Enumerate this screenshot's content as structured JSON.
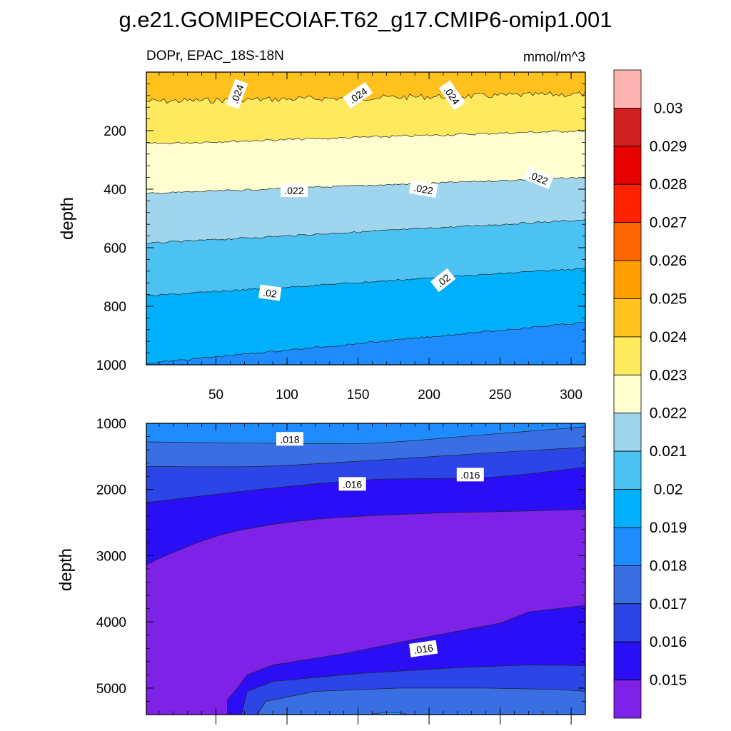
{
  "chart_data": {
    "type": "filled-contour",
    "title": "g.e21.GOMIPECOIAF.T62_g17.CMIP6-omip1.001",
    "left_subtitle": "DOPr, EPAC_18S-18N",
    "units": "mmol/m^3",
    "colorbar": {
      "levels": [
        "0.015",
        "0.016",
        "0.017",
        "0.018",
        "0.019",
        "0.02",
        "0.021",
        "0.022",
        "0.023",
        "0.024",
        "0.025",
        "0.026",
        "0.027",
        "0.028",
        "0.029",
        "0.03"
      ],
      "colors": [
        "#7e22e8",
        "#2a0ef5",
        "#2c45e6",
        "#3a6fe4",
        "#1e8cff",
        "#00b0fb",
        "#4cc2f3",
        "#9fd6ee",
        "#fffed0",
        "#ffe95f",
        "#fec11d",
        "#fe9e00",
        "#ff6600",
        "#ff2200",
        "#e70000",
        "#d02020",
        "#ffb4b4"
      ]
    },
    "panels": [
      {
        "name": "upper",
        "ylabel": "depth",
        "xlim": [
          1,
          310
        ],
        "ylim": [
          1000,
          0
        ],
        "xticks": [
          "50",
          "100",
          "150",
          "200",
          "250",
          "300"
        ],
        "xtick_values": [
          50,
          100,
          150,
          200,
          250,
          300
        ],
        "yticks": [
          "200",
          "400",
          "600",
          "800",
          "1000"
        ],
        "ytick_values": [
          200,
          400,
          600,
          800,
          1000
        ],
        "contour_labels": [
          {
            "text": ".024",
            "x": 65,
            "y": 75,
            "angle": -70
          },
          {
            "text": ".024",
            "x": 150,
            "y": 80,
            "angle": -35
          },
          {
            "text": ".024",
            "x": 216,
            "y": 80,
            "angle": 55
          },
          {
            "text": ".022",
            "x": 105,
            "y": 405,
            "angle": 0
          },
          {
            "text": ".022",
            "x": 196,
            "y": 400,
            "angle": 10
          },
          {
            "text": ".022",
            "x": 277,
            "y": 362,
            "angle": 22
          },
          {
            "text": ".02",
            "x": 88,
            "y": 755,
            "angle": 8
          },
          {
            "text": ".02",
            "x": 210,
            "y": 712,
            "angle": -38
          }
        ],
        "boundaries": [
          {
            "level": "0.024",
            "x": [
              1,
              310
            ],
            "y": [
              100,
              75
            ],
            "noise": 10
          },
          {
            "level": "0.023",
            "x": [
              1,
              310
            ],
            "y": [
              245,
              200
            ],
            "noise": 4
          },
          {
            "level": "0.022",
            "x": [
              1,
              310
            ],
            "y": [
              415,
              360
            ],
            "noise": 3
          },
          {
            "level": "0.021",
            "x": [
              1,
              310
            ],
            "y": [
              585,
              505
            ],
            "noise": 3
          },
          {
            "level": "0.02",
            "x": [
              1,
              310
            ],
            "y": [
              765,
              670
            ],
            "noise": 3
          },
          {
            "level": "0.019",
            "x": [
              1,
              310
            ],
            "y": [
              995,
              855
            ],
            "noise": 3
          }
        ]
      },
      {
        "name": "lower",
        "ylabel": "depth",
        "xlim": [
          1,
          310
        ],
        "ylim": [
          5400,
          1000
        ],
        "xticks": [],
        "yticks": [
          "1000",
          "2000",
          "3000",
          "4000",
          "5000"
        ],
        "ytick_values": [
          1000,
          2000,
          3000,
          4000,
          5000
        ],
        "contour_labels": [
          {
            "text": ".018",
            "x": 102,
            "y": 1240,
            "angle": 0
          },
          {
            "text": ".016",
            "x": 146,
            "y": 1920,
            "angle": 0
          },
          {
            "text": ".016",
            "x": 229,
            "y": 1780,
            "angle": 0
          },
          {
            "text": ".016",
            "x": 196,
            "y": 4410,
            "angle": -8
          }
        ],
        "bands": [
          {
            "level": "0.018",
            "top": [
              [
                1,
                1000
              ],
              [
                310,
                1000
              ]
            ]
          },
          {
            "level": "0.017",
            "top": [
              [
                1,
                1280
              ],
              [
                80,
                1300
              ],
              [
                160,
                1300
              ],
              [
                240,
                1170
              ],
              [
                310,
                1050
              ]
            ]
          },
          {
            "level": "0.016",
            "top": [
              [
                1,
                1650
              ],
              [
                80,
                1650
              ],
              [
                160,
                1560
              ],
              [
                240,
                1450
              ],
              [
                310,
                1360
              ]
            ]
          },
          {
            "level": "0.015",
            "top": [
              [
                1,
                2200
              ],
              [
                80,
                2000
              ],
              [
                160,
                1850
              ],
              [
                240,
                1820
              ],
              [
                310,
                1660
              ]
            ]
          },
          {
            "level": "below",
            "top": [
              [
                1,
                3150
              ],
              [
                20,
                2950
              ],
              [
                60,
                2650
              ],
              [
                120,
                2450
              ],
              [
                200,
                2360
              ],
              [
                260,
                2330
              ],
              [
                310,
                2300
              ]
            ]
          }
        ],
        "bottom_blobs": [
          {
            "level": "0.015",
            "points": [
              [
                58,
                5400
              ],
              [
                58,
                5180
              ],
              [
                65,
                5000
              ],
              [
                72,
                4800
              ],
              [
                90,
                4650
              ],
              [
                140,
                4480
              ],
              [
                200,
                4220
              ],
              [
                250,
                4020
              ],
              [
                270,
                3850
              ],
              [
                310,
                3750
              ],
              [
                310,
                5400
              ]
            ]
          },
          {
            "level": "0.016",
            "points": [
              [
                68,
                5400
              ],
              [
                72,
                5050
              ],
              [
                90,
                4900
              ],
              [
                150,
                4780
              ],
              [
                220,
                4690
              ],
              [
                270,
                4650
              ],
              [
                310,
                4660
              ],
              [
                310,
                5400
              ]
            ]
          },
          {
            "level": "0.017",
            "points": [
              [
                79,
                5400
              ],
              [
                85,
                5200
              ],
              [
                120,
                5050
              ],
              [
                180,
                5000
              ],
              [
                240,
                5000
              ],
              [
                290,
                5020
              ],
              [
                310,
                5050
              ],
              [
                310,
                5400
              ]
            ]
          },
          {
            "level": "0.018",
            "points": [
              [
                158,
                5400
              ],
              [
                168,
                5370
              ],
              [
                178,
                5370
              ],
              [
                186,
                5400
              ]
            ]
          }
        ]
      }
    ]
  }
}
